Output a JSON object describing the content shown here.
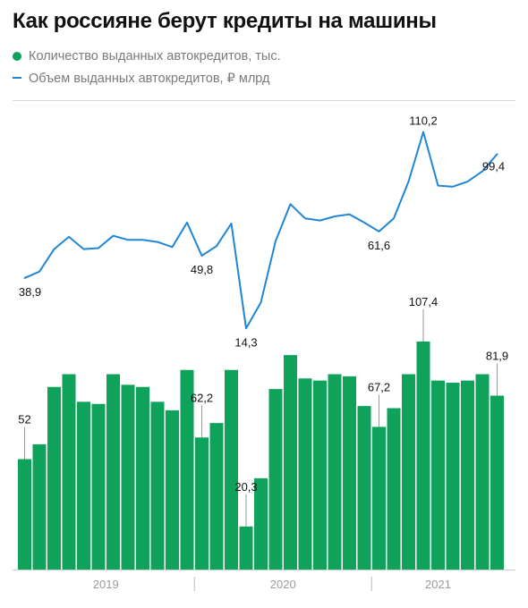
{
  "title": "Как россияне берут кредиты на машины",
  "legend": {
    "count_label": "Количество выданных автокредитов, тыс.",
    "volume_label": "Объем выданных автокредитов, ₽ млрд"
  },
  "colors": {
    "bars": "#0fa25b",
    "line": "#1f86d6",
    "axis": "#9a9a9a",
    "text": "#111111"
  },
  "chart_data": {
    "type": "bar+line",
    "x": [
      "2019-01",
      "2019-02",
      "2019-03",
      "2019-04",
      "2019-05",
      "2019-06",
      "2019-07",
      "2019-08",
      "2019-09",
      "2019-10",
      "2019-11",
      "2019-12",
      "2020-01",
      "2020-02",
      "2020-03",
      "2020-04",
      "2020-05",
      "2020-06",
      "2020-07",
      "2020-08",
      "2020-09",
      "2020-10",
      "2020-11",
      "2020-12",
      "2021-01",
      "2021-02",
      "2021-03",
      "2021-04",
      "2021-05",
      "2021-06",
      "2021-07",
      "2021-08",
      "2021-09"
    ],
    "xaxis_labels": [
      {
        "label": "2019",
        "start": 0,
        "end": 11
      },
      {
        "label": "2020",
        "start": 12,
        "end": 23
      },
      {
        "label": "2021",
        "start": 24,
        "end": 32
      }
    ],
    "series": [
      {
        "name": "Количество выданных автокредитов, тыс.",
        "type": "bar",
        "values": [
          52,
          59,
          86,
          92,
          79,
          78,
          92,
          87,
          86,
          79,
          75,
          94,
          62.2,
          69,
          94,
          20.3,
          43,
          85,
          101,
          90,
          89,
          92,
          91,
          77,
          67.2,
          76,
          92,
          107.4,
          89,
          88,
          89,
          92,
          81.9
        ],
        "labels": [
          {
            "index": 0,
            "text": "52"
          },
          {
            "index": 12,
            "text": "62,2"
          },
          {
            "index": 15,
            "text": "20,3"
          },
          {
            "index": 24,
            "text": "67,2"
          },
          {
            "index": 27,
            "text": "107,4"
          },
          {
            "index": 32,
            "text": "81,9"
          }
        ]
      },
      {
        "name": "Объем выданных автокредитов, ₽ млрд",
        "type": "line",
        "values": [
          38.9,
          42,
          53,
          59,
          53,
          53.5,
          59.5,
          57.5,
          57.5,
          56.5,
          54,
          66,
          49.8,
          54.5,
          65.5,
          14.3,
          27,
          57,
          75,
          68,
          67,
          69,
          70,
          66,
          61.6,
          68,
          86,
          110.2,
          84,
          83.5,
          86,
          91,
          99.4
        ],
        "labels": [
          {
            "index": 0,
            "text": "38,9"
          },
          {
            "index": 12,
            "text": "49,8"
          },
          {
            "index": 15,
            "text": "14,3"
          },
          {
            "index": 24,
            "text": "61,6"
          },
          {
            "index": 27,
            "text": "110,2"
          },
          {
            "index": 32,
            "text": "99,4"
          }
        ]
      }
    ]
  }
}
